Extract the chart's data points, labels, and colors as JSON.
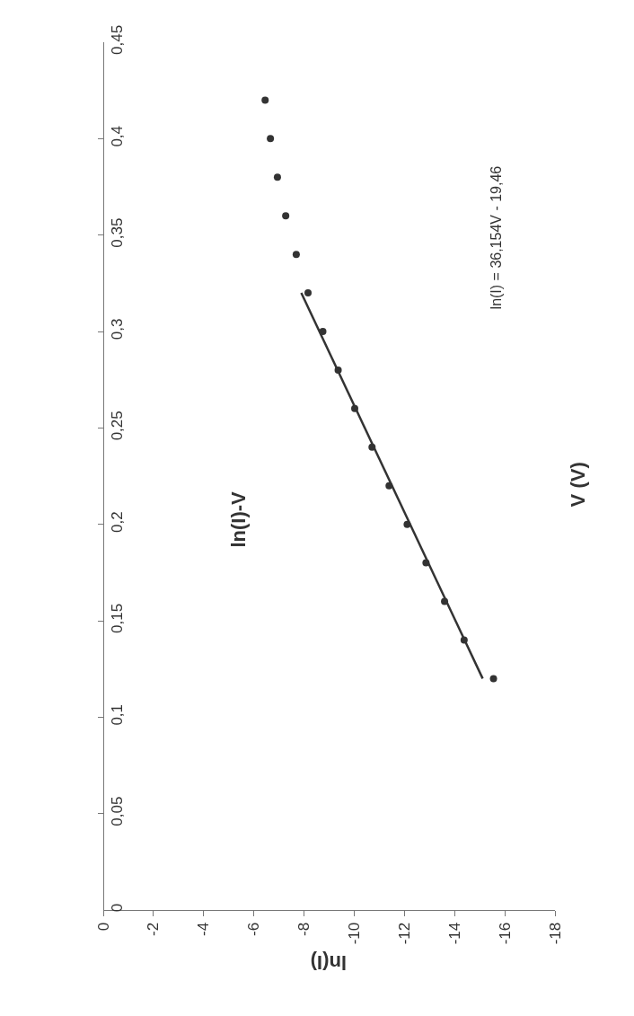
{
  "chart_data": {
    "type": "scatter",
    "title": "ln(I)-V",
    "xlabel": "ln(I)",
    "ylabel": "V (V)",
    "annotations": [
      "ln(I) = 36,154V - 19,46"
    ],
    "series": [
      {
        "color": "#333333",
        "x": [
          -15.55,
          -14.38,
          -13.6,
          -12.86,
          -12.11,
          -11.39,
          -10.71,
          -10.02,
          -9.36,
          -8.75,
          -8.16,
          -7.69,
          -7.27,
          -6.94,
          -6.66,
          -6.45
        ],
        "values": [
          0.12,
          0.14,
          0.16,
          0.18,
          0.2,
          0.22,
          0.24,
          0.26,
          0.28,
          0.3,
          0.32,
          0.34,
          0.36,
          0.38,
          0.4,
          0.42
        ]
      },
      {
        "type": "line",
        "marker": "none",
        "color": "#333333",
        "x": [
          -15.12,
          -7.89
        ],
        "values": [
          0.12,
          0.32
        ]
      }
    ],
    "xlim": [
      0,
      -18
    ],
    "xticks": [
      0,
      -2,
      -4,
      -6,
      -8,
      -10,
      -12,
      -14,
      -16,
      -18
    ],
    "ylim": [
      0,
      0.45
    ],
    "yticks": [
      0,
      {
        "value": 0.05,
        "label": "0,05"
      },
      {
        "value": 0.1,
        "label": "0,1"
      },
      {
        "value": 0.15,
        "label": "0,15"
      },
      {
        "value": 0.2,
        "label": "0,2"
      },
      {
        "value": 0.25,
        "label": "0,25"
      },
      {
        "value": 0.3,
        "label": "0,3"
      },
      {
        "value": 0.35,
        "label": "0,35"
      },
      {
        "value": 0.4,
        "label": "0,4"
      },
      {
        "value": 0.45,
        "label": "0,45"
      }
    ],
    "marker": "circle",
    "line_style": "solid"
  }
}
